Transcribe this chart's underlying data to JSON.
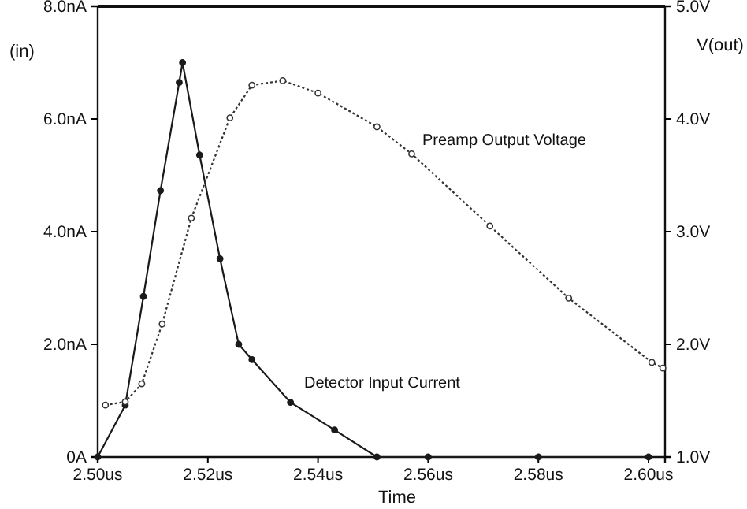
{
  "chart_data": {
    "type": "line",
    "xlabel": "Time",
    "ylabel": "(in)",
    "y2label": "V(out)",
    "xlim": [
      2.5,
      2.603
    ],
    "xticks": [
      {
        "value": 2.5,
        "label": "2.50us"
      },
      {
        "value": 2.52,
        "label": "2.52us"
      },
      {
        "value": 2.54,
        "label": "2.54us"
      },
      {
        "value": 2.56,
        "label": "2.56us"
      },
      {
        "value": 2.58,
        "label": "2.58us"
      },
      {
        "value": 2.6,
        "label": "2.60us"
      }
    ],
    "ylim": [
      0,
      8
    ],
    "yticks": [
      {
        "value": 0,
        "label": "0A"
      },
      {
        "value": 2,
        "label": "2.0nA"
      },
      {
        "value": 4,
        "label": "4.0nA"
      },
      {
        "value": 6,
        "label": "6.0nA"
      },
      {
        "value": 8,
        "label": "8.0nA"
      }
    ],
    "y2lim": [
      1,
      5
    ],
    "y2ticks": [
      {
        "value": 1,
        "label": "1.0V"
      },
      {
        "value": 2,
        "label": "2.0V"
      },
      {
        "value": 3,
        "label": "3.0V"
      },
      {
        "value": 4,
        "label": "4.0V"
      },
      {
        "value": 5,
        "label": "5.0V"
      }
    ],
    "series": [
      {
        "color": "#1a1a1a",
        "marker": "circle",
        "line_style": "solid",
        "x": [
          2.5,
          2.505,
          2.5083,
          2.5114,
          2.5148,
          2.5154,
          2.5185,
          2.5222,
          2.5256,
          2.528,
          2.535,
          2.543,
          2.5507,
          2.56,
          2.58,
          2.6
        ],
        "values": [
          0,
          0.92,
          2.85,
          4.73,
          6.65,
          7.0,
          5.36,
          3.52,
          2.0,
          1.73,
          0.97,
          0.48,
          0,
          0,
          0,
          0
        ]
      },
      {
        "color": "#333333",
        "axis": "y2",
        "marker": "circle",
        "line_style": "dotted",
        "x": [
          2.5014,
          2.505,
          2.508,
          2.5117,
          2.517,
          2.524,
          2.528,
          2.5336,
          2.54,
          2.5507,
          2.557,
          2.5712,
          2.5855,
          2.6006,
          2.6026
        ],
        "values": [
          1.46,
          1.49,
          1.65,
          2.18,
          3.12,
          4.01,
          4.3,
          4.34,
          4.23,
          3.93,
          3.69,
          3.05,
          2.41,
          1.84,
          1.79
        ]
      }
    ],
    "annotations": [
      "Preamp Output Voltage",
      "Detector Input Current"
    ]
  }
}
